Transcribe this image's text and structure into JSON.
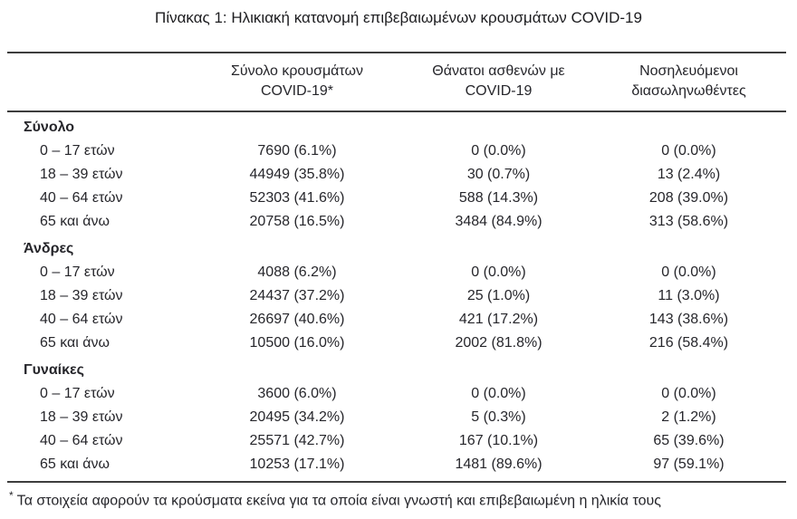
{
  "title": "Πίνακας 1: Ηλικιακή κατανομή επιβεβαιωμένων κρουσμάτων COVID-19",
  "colors": {
    "text": "#26262b",
    "title_text": "#1d1d20",
    "rule": "#3d3d3d",
    "background": "#ffffff"
  },
  "table": {
    "header": {
      "cases": {
        "line1": "Σύνολο κρουσμάτων",
        "line2": "COVID-19*"
      },
      "deaths": {
        "line1": "Θάνατοι ασθενών με",
        "line2": "COVID-19"
      },
      "intubated": {
        "line1": "Νοσηλευόμενοι",
        "line2": "διασωληνωθέντες"
      }
    },
    "sections": [
      {
        "label": "Σύνολο",
        "rows": [
          {
            "age": "0 – 17 ετών",
            "cases": "7690 (6.1%)",
            "deaths": "0 (0.0%)",
            "intubated": "0 (0.0%)"
          },
          {
            "age": "18 – 39 ετών",
            "cases": "44949 (35.8%)",
            "deaths": "30 (0.7%)",
            "intubated": "13 (2.4%)"
          },
          {
            "age": "40 – 64 ετών",
            "cases": "52303 (41.6%)",
            "deaths": "588 (14.3%)",
            "intubated": "208 (39.0%)"
          },
          {
            "age": "65 και άνω",
            "cases": "20758 (16.5%)",
            "deaths": "3484 (84.9%)",
            "intubated": "313 (58.6%)"
          }
        ]
      },
      {
        "label": "Άνδρες",
        "rows": [
          {
            "age": "0 – 17 ετών",
            "cases": "4088 (6.2%)",
            "deaths": "0 (0.0%)",
            "intubated": "0 (0.0%)"
          },
          {
            "age": "18 – 39 ετών",
            "cases": "24437 (37.2%)",
            "deaths": "25 (1.0%)",
            "intubated": "11 (3.0%)"
          },
          {
            "age": "40 – 64 ετών",
            "cases": "26697 (40.6%)",
            "deaths": "421 (17.2%)",
            "intubated": "143 (38.6%)"
          },
          {
            "age": "65 και άνω",
            "cases": "10500 (16.0%)",
            "deaths": "2002 (81.8%)",
            "intubated": "216 (58.4%)"
          }
        ]
      },
      {
        "label": "Γυναίκες",
        "rows": [
          {
            "age": "0 – 17 ετών",
            "cases": "3600 (6.0%)",
            "deaths": "0 (0.0%)",
            "intubated": "0 (0.0%)"
          },
          {
            "age": "18 – 39 ετών",
            "cases": "20495 (34.2%)",
            "deaths": "5 (0.3%)",
            "intubated": "2 (1.2%)"
          },
          {
            "age": "40 – 64 ετών",
            "cases": "25571 (42.7%)",
            "deaths": "167 (10.1%)",
            "intubated": "65 (39.6%)"
          },
          {
            "age": "65 και άνω",
            "cases": "10253 (17.1%)",
            "deaths": "1481 (89.6%)",
            "intubated": "97 (59.1%)"
          }
        ]
      }
    ]
  },
  "footnote": {
    "marker": "*",
    "text": "Τα στοιχεία αφορούν τα κρούσματα εκείνα για τα οποία είναι γνωστή και επιβεβαιωμένη η ηλικία τους"
  }
}
